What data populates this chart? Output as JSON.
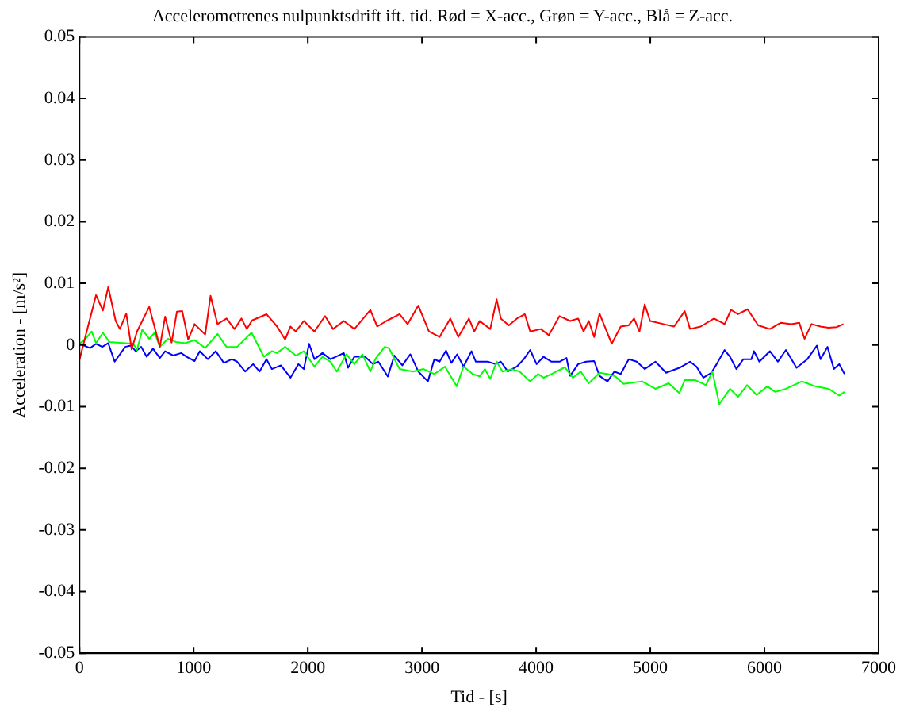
{
  "chart_data": {
    "type": "line",
    "title": "Accelerometrenes nulpunktsdrift ift. tid. Rød = X-acc., Grøn = Y-acc., Blå = Z-acc.",
    "xlabel": "Tid - [s]",
    "ylabel": "Acceleration - [m/s²]",
    "xlim": [
      0,
      7000
    ],
    "xticks": [
      0,
      1000,
      2000,
      3000,
      4000,
      5000,
      6000,
      7000
    ],
    "ylim": [
      -0.05,
      0.05
    ],
    "yticks": [
      -0.05,
      -0.04,
      -0.03,
      -0.02,
      -0.01,
      0,
      0.01,
      0.02,
      0.03,
      0.04,
      0.05
    ],
    "grid": false,
    "legend": false,
    "line_style": "solid",
    "series": [
      {
        "color": "#ff0000",
        "x": [
          0,
          52,
          145,
          205,
          252,
          317,
          354,
          410,
          457,
          504,
          611,
          704,
          750,
          807,
          853,
          900,
          952,
          1008,
          1101,
          1148,
          1209,
          1288,
          1358,
          1419,
          1466,
          1512,
          1638,
          1731,
          1801,
          1848,
          1895,
          1965,
          2058,
          2151,
          2221,
          2315,
          2408,
          2548,
          2608,
          2688,
          2804,
          2874,
          2968,
          3061,
          3154,
          3248,
          3318,
          3411,
          3458,
          3505,
          3598,
          3654,
          3691,
          3761,
          3831,
          3901,
          3948,
          4041,
          4111,
          4205,
          4298,
          4368,
          4415,
          4461,
          4508,
          4555,
          4662,
          4741,
          4811,
          4858,
          4905,
          4951,
          4998,
          5115,
          5208,
          5301,
          5348,
          5441,
          5558,
          5651,
          5707,
          5768,
          5852,
          5945,
          6048,
          6141,
          6235,
          6305,
          6351,
          6412,
          6491,
          6561,
          6631,
          6692
        ],
        "values": [
          -0.0024,
          0.0014,
          0.0081,
          0.0056,
          0.0094,
          0.0039,
          0.0026,
          0.0051,
          -0.0007,
          0.0022,
          0.0062,
          -0.0003,
          0.0046,
          0.0004,
          0.0054,
          0.0055,
          0.0009,
          0.0034,
          0.0017,
          0.008,
          0.0034,
          0.0043,
          0.0026,
          0.0043,
          0.0026,
          0.004,
          0.005,
          0.003,
          0.0009,
          0.003,
          0.0022,
          0.0039,
          0.0022,
          0.0047,
          0.0026,
          0.0039,
          0.0026,
          0.0057,
          0.003,
          0.0039,
          0.005,
          0.0034,
          0.0064,
          0.0022,
          0.0013,
          0.0043,
          0.0013,
          0.0043,
          0.0022,
          0.0039,
          0.0026,
          0.0074,
          0.0043,
          0.0032,
          0.0043,
          0.005,
          0.0022,
          0.0026,
          0.0016,
          0.0047,
          0.0039,
          0.0043,
          0.0022,
          0.0039,
          0.0013,
          0.0051,
          0.0002,
          0.003,
          0.0032,
          0.0043,
          0.0022,
          0.0066,
          0.0039,
          0.0034,
          0.003,
          0.0055,
          0.0026,
          0.003,
          0.0043,
          0.0034,
          0.0057,
          0.005,
          0.0058,
          0.0032,
          0.0026,
          0.0036,
          0.0034,
          0.0036,
          0.001,
          0.0034,
          0.003,
          0.0028,
          0.0029,
          0.0034
        ]
      },
      {
        "color": "#00ff00",
        "x": [
          0,
          52,
          107,
          145,
          205,
          261,
          401,
          471,
          504,
          550,
          611,
          658,
          704,
          774,
          844,
          924,
          1008,
          1101,
          1209,
          1288,
          1381,
          1507,
          1615,
          1685,
          1731,
          1801,
          1895,
          1965,
          2058,
          2128,
          2198,
          2254,
          2338,
          2408,
          2478,
          2548,
          2594,
          2674,
          2711,
          2804,
          2921,
          3014,
          3108,
          3201,
          3304,
          3364,
          3444,
          3505,
          3551,
          3598,
          3654,
          3705,
          3785,
          3855,
          3948,
          4018,
          4065,
          4135,
          4251,
          4321,
          4391,
          4461,
          4555,
          4625,
          4695,
          4765,
          4928,
          5045,
          5161,
          5255,
          5301,
          5395,
          5488,
          5544,
          5604,
          5698,
          5768,
          5847,
          5931,
          6025,
          6095,
          6188,
          6328,
          6445,
          6561,
          6655,
          6701
        ],
        "values": [
          0.0002,
          0.001,
          0.0022,
          0.0003,
          0.002,
          0.0005,
          0.0003,
          0.0002,
          -0.0008,
          0.0025,
          0.001,
          0.002,
          -0.0003,
          0.001,
          0.0005,
          0.0003,
          0.0008,
          -0.0005,
          0.0018,
          -0.0003,
          -0.0003,
          0.002,
          -0.0019,
          -0.001,
          -0.0013,
          -0.0003,
          -0.0017,
          -0.001,
          -0.0035,
          -0.0019,
          -0.0027,
          -0.0043,
          -0.0015,
          -0.0031,
          -0.0015,
          -0.0043,
          -0.0022,
          -0.0003,
          -0.0005,
          -0.0039,
          -0.0043,
          -0.0039,
          -0.0047,
          -0.0035,
          -0.0067,
          -0.0035,
          -0.0047,
          -0.0051,
          -0.0039,
          -0.0055,
          -0.0027,
          -0.0043,
          -0.0039,
          -0.0043,
          -0.0059,
          -0.0047,
          -0.0053,
          -0.0047,
          -0.0036,
          -0.0053,
          -0.0043,
          -0.0062,
          -0.0045,
          -0.0047,
          -0.0051,
          -0.0063,
          -0.0059,
          -0.0071,
          -0.0062,
          -0.0078,
          -0.0057,
          -0.0057,
          -0.0065,
          -0.0043,
          -0.0096,
          -0.0071,
          -0.0084,
          -0.0065,
          -0.0081,
          -0.0067,
          -0.0076,
          -0.0071,
          -0.0059,
          -0.0067,
          -0.0071,
          -0.0082,
          -0.0076
        ]
      },
      {
        "color": "#0000ff",
        "x": [
          0,
          93,
          145,
          200,
          252,
          308,
          401,
          448,
          494,
          541,
          588,
          644,
          704,
          750,
          821,
          891,
          938,
          1008,
          1054,
          1124,
          1194,
          1265,
          1335,
          1381,
          1451,
          1521,
          1577,
          1638,
          1685,
          1764,
          1848,
          1918,
          1965,
          2011,
          2058,
          2128,
          2198,
          2245,
          2315,
          2352,
          2408,
          2501,
          2571,
          2618,
          2701,
          2758,
          2828,
          2898,
          2968,
          3052,
          3108,
          3154,
          3211,
          3257,
          3308,
          3364,
          3434,
          3472,
          3575,
          3645,
          3691,
          3752,
          3831,
          3892,
          3948,
          4004,
          4065,
          4135,
          4205,
          4266,
          4298,
          4368,
          4438,
          4508,
          4555,
          4625,
          4685,
          4741,
          4811,
          4881,
          4951,
          5045,
          5138,
          5255,
          5348,
          5404,
          5465,
          5535,
          5581,
          5651,
          5698,
          5754,
          5815,
          5885,
          5908,
          5955,
          6048,
          6118,
          6188,
          6281,
          6375,
          6459,
          6491,
          6552,
          6608,
          6655,
          6701
        ],
        "values": [
          0.0002,
          -0.0005,
          0.0002,
          -0.0003,
          0.0003,
          -0.0027,
          -0.0003,
          -0.0001,
          -0.001,
          -0.0003,
          -0.0019,
          -0.0006,
          -0.0021,
          -0.001,
          -0.0017,
          -0.0013,
          -0.0019,
          -0.0026,
          -0.001,
          -0.0023,
          -0.001,
          -0.0029,
          -0.0023,
          -0.0027,
          -0.0043,
          -0.0031,
          -0.0043,
          -0.0023,
          -0.0039,
          -0.0033,
          -0.0053,
          -0.0031,
          -0.0039,
          0.0002,
          -0.0023,
          -0.0013,
          -0.0023,
          -0.0019,
          -0.0013,
          -0.0037,
          -0.0019,
          -0.0019,
          -0.0031,
          -0.0027,
          -0.0051,
          -0.0017,
          -0.0033,
          -0.0015,
          -0.0043,
          -0.0059,
          -0.0023,
          -0.0027,
          -0.0009,
          -0.0029,
          -0.0015,
          -0.0035,
          -0.001,
          -0.0027,
          -0.0027,
          -0.0031,
          -0.0027,
          -0.0043,
          -0.0035,
          -0.0023,
          -0.0008,
          -0.0031,
          -0.0019,
          -0.0027,
          -0.0027,
          -0.0021,
          -0.005,
          -0.0031,
          -0.0027,
          -0.0026,
          -0.005,
          -0.0059,
          -0.0043,
          -0.0047,
          -0.0023,
          -0.0027,
          -0.0039,
          -0.0027,
          -0.0045,
          -0.0037,
          -0.0027,
          -0.0035,
          -0.0053,
          -0.0045,
          -0.0031,
          -0.0008,
          -0.0019,
          -0.0039,
          -0.0023,
          -0.0023,
          -0.001,
          -0.0027,
          -0.001,
          -0.0027,
          -0.0008,
          -0.0037,
          -0.0023,
          -0.0001,
          -0.0023,
          -0.0003,
          -0.0039,
          -0.0031,
          -0.0047
        ]
      }
    ]
  }
}
